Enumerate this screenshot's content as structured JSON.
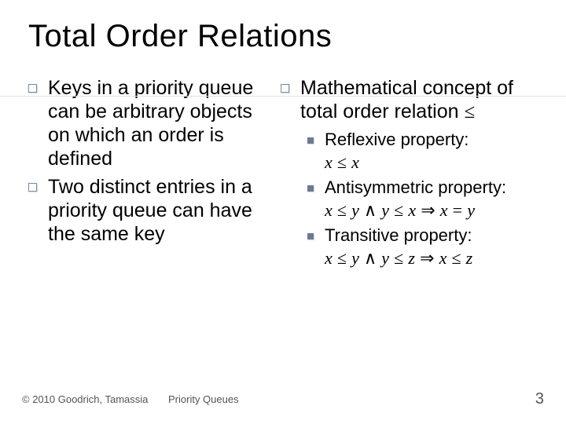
{
  "title": "Total Order Relations",
  "left": {
    "items": [
      "Keys in a priority queue can be arbitrary objects on which an order is defined",
      "Two distinct entries in a priority queue can have the same key"
    ]
  },
  "right": {
    "heading_prefix": "Mathematical concept of total order relation ",
    "relation_symbol": "≤",
    "props": [
      {
        "label": "Reflexive property:",
        "formula_html": "<span class='math'>x</span> <span class='op'>≤</span> <span class='math'>x</span>"
      },
      {
        "label": "Antisymmetric property:",
        "formula_html": "<span class='math'>x</span> <span class='op'>≤</span> <span class='math'>y</span> <span class='op'>∧</span> <span class='math'>y</span> <span class='op'>≤</span> <span class='math'>x</span> <span class='op'>⇒</span> <span class='math'>x</span> <span class='op'>=</span> <span class='math'>y</span>"
      },
      {
        "label": "Transitive property:",
        "formula_html": "<span class='math'>x</span> <span class='op'>≤</span> <span class='math'>y</span> <span class='op'>∧</span> <span class='math'>y</span> <span class='op'>≤</span> <span class='math'>z</span> <span class='op'>⇒</span> <span class='math'>x</span> <span class='op'>≤</span> <span class='math'>z</span>"
      }
    ]
  },
  "footer": {
    "copyright": "© 2010 Goodrich, Tamassia",
    "center": "Priority Queues",
    "page": "3"
  },
  "colors": {
    "bullet_border": "#7a8aa0",
    "sub_bullet_fill": "#6b7a95",
    "text": "#000000",
    "background": "#ffffff"
  }
}
